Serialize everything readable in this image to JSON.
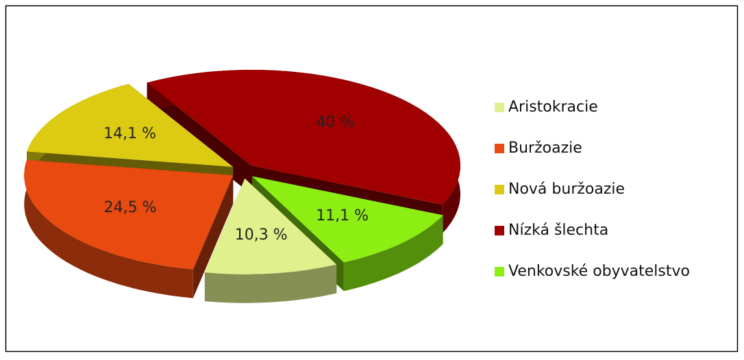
{
  "chart_data": {
    "type": "pie3d",
    "categories": [
      "Aristokracie",
      "Buržoazie",
      "Nová buržoazie",
      "Nízká šlechta",
      "Venkovské obyvatelstvo"
    ],
    "values": [
      10.3,
      24.5,
      14.1,
      40,
      11.1
    ],
    "value_labels": [
      "10,3 %",
      "24,5 %",
      "14,1 %",
      "40 %",
      "11,1 %"
    ],
    "colors": [
      "#dff08c",
      "#e84a10",
      "#dccb12",
      "#a00000",
      "#8cee12"
    ],
    "legend": "right"
  }
}
